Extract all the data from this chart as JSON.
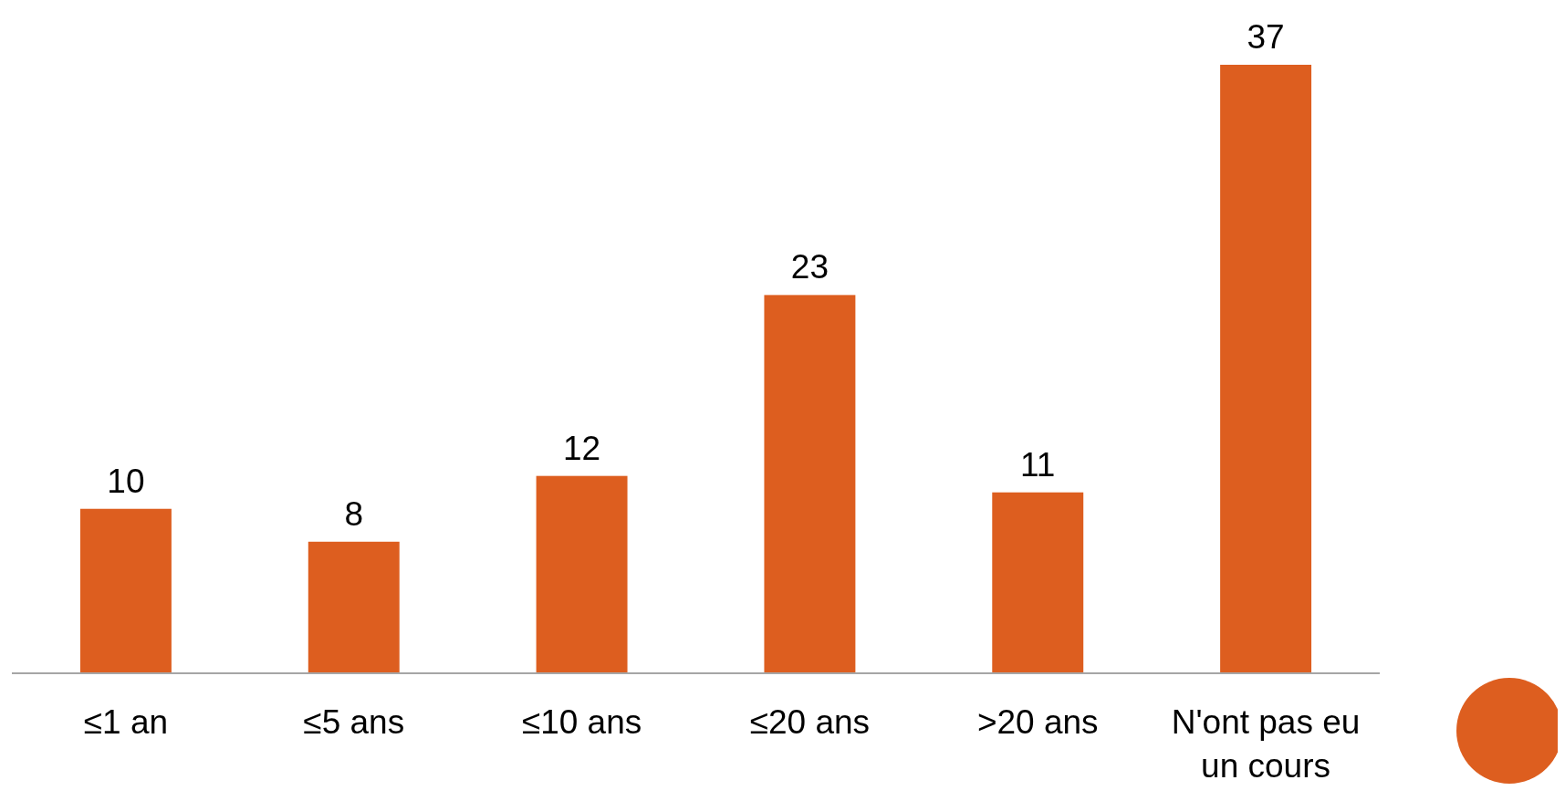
{
  "chart_data": {
    "type": "bar",
    "categories": [
      "≤1 an",
      "≤5 ans",
      "≤10 ans",
      "≤20 ans",
      ">20 ans",
      "N'ont pas eu un cours"
    ],
    "values": [
      10,
      8,
      12,
      23,
      11,
      37
    ],
    "color": "#dd5e1f",
    "data_labels": true
  }
}
